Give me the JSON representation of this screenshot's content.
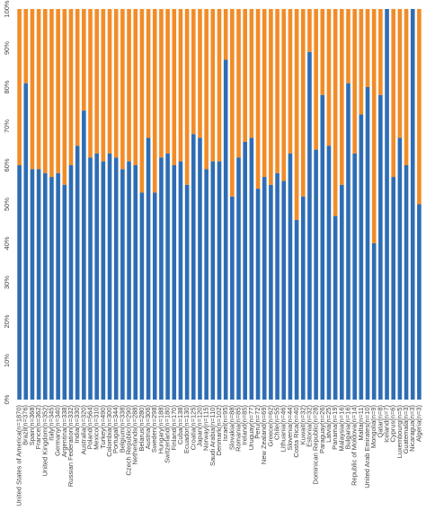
{
  "chart_data": {
    "type": "stacked_bar_100",
    "categories": [
      "United States of America(n=1870)",
      "Brazil(n=376)",
      "Spain(n=368)",
      "France(n=362)",
      "United Kingdom(n=352)",
      "Italy(n=345)",
      "Germany(n=340)",
      "Argentina(n=338)",
      "Russian Federation(n=332)",
      "India(n=330)",
      "Australia(n=320)",
      "Poland(n=564)",
      "Mexico(n=310)",
      "Turkey(n=490)",
      "Colombia(n=300)",
      "Portugal(n=344)",
      "Belgium(n=338)",
      "Czech Republic(n=290)",
      "Netherlands(n=288)",
      "Belarus(n=280)",
      "Austria(n=306)",
      "Sweden(n=298)",
      "Hungary(n=188)",
      "Switzerland(n=180)",
      "Finland(n=170)",
      "Cuba(n=138)",
      "Ecuador(n=130)",
      "Croatia(n=125)",
      "Japan(n=120)",
      "Norway(n=115)",
      "Saudi Arabia(n=110)",
      "Denmark(n=102)",
      "Israel(n=95)",
      "Slovakia(n=88)",
      "Romania(n=85)",
      "Ireland(n=85)",
      "Uruguay(n=77)",
      "Peru(n=72)",
      "New Zealand(n=69)",
      "Greece(n=62)",
      "Chile(n=55)",
      "Lithuania(n=46)",
      "Slovenia(n=44)",
      "Costa Rica(n=40)",
      "Kuwait(n=32)",
      "Estonia(n=32)",
      "Dominican Republic(n=28)",
      "Paraguay(n=26)",
      "Latvia(n=25)",
      "Panama(n=19)",
      "Malaysia(n=16)",
      "Bulgaria(n=16)",
      "Republic of Moldova(n=14)",
      "Malta(n=11)",
      "United Arab Emirates(n=10)",
      "Mongolia(n=9)",
      "Qatar(n=8)",
      "Iceland(n=7)",
      "Cyprus(n=6)",
      "Luxembourg(n=5)",
      "Guatemala(n=3)",
      "Nicaragua(n=3)",
      "Algeria(n=3)"
    ],
    "series": [
      {
        "color": "#2e6db4",
        "values": [
          60,
          81,
          59,
          59,
          58,
          57,
          58,
          55,
          60,
          65,
          74,
          62,
          63,
          61,
          63,
          62,
          59,
          61,
          60,
          53,
          67,
          53,
          62,
          63,
          60,
          61,
          55,
          68,
          67,
          59,
          61,
          61,
          87,
          52,
          62,
          66,
          67,
          54,
          57,
          55,
          58,
          56,
          63,
          46,
          52,
          89,
          64,
          78,
          65,
          47,
          55,
          81,
          63,
          73,
          80,
          40,
          78,
          100,
          57,
          67,
          60,
          100,
          50
        ]
      },
      {
        "color": "#f28c28",
        "values": [
          40,
          19,
          41,
          41,
          42,
          43,
          42,
          45,
          40,
          35,
          26,
          38,
          37,
          39,
          37,
          38,
          41,
          39,
          40,
          47,
          33,
          47,
          38,
          37,
          40,
          39,
          45,
          32,
          33,
          41,
          39,
          39,
          13,
          48,
          38,
          34,
          33,
          46,
          43,
          45,
          42,
          44,
          37,
          54,
          48,
          11,
          36,
          22,
          35,
          53,
          45,
          19,
          37,
          27,
          20,
          60,
          22,
          0,
          43,
          33,
          40,
          0,
          50
        ]
      }
    ],
    "ylim": [
      0,
      100
    ],
    "yticks": [
      {
        "value": 0,
        "label": "0%"
      },
      {
        "value": 10,
        "label": "10%"
      },
      {
        "value": 20,
        "label": "20%"
      },
      {
        "value": 30,
        "label": "30%"
      },
      {
        "value": 40,
        "label": "40%"
      },
      {
        "value": 50,
        "label": "50%"
      },
      {
        "value": 60,
        "label": "60%"
      },
      {
        "value": 70,
        "label": "70%"
      },
      {
        "value": 80,
        "label": "80%"
      },
      {
        "value": 90,
        "label": "90%"
      },
      {
        "value": 100,
        "label": "100%"
      }
    ]
  }
}
